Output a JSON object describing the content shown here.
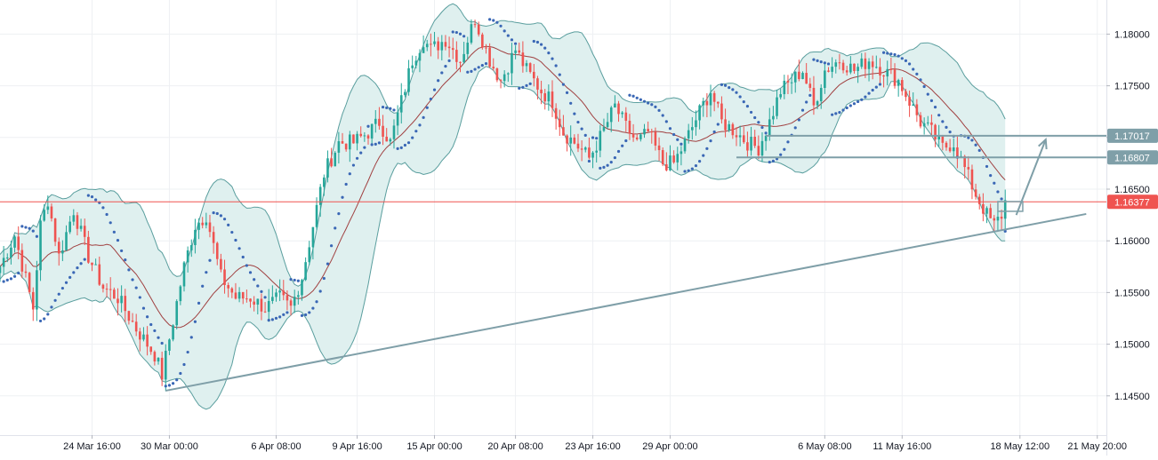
{
  "chart_data": {
    "type": "candlestick",
    "symbol": "",
    "grid": true,
    "price_axis": "right",
    "ylim": [
      1.1412,
      1.1833
    ],
    "y_ticks": [
      {
        "value": 1.18,
        "label": "1.18000"
      },
      {
        "value": 1.175,
        "label": "1.17500"
      },
      {
        "value": 1.17,
        "label": "1.17000"
      },
      {
        "value": 1.165,
        "label": "1.16500"
      },
      {
        "value": 1.16,
        "label": "1.16000"
      },
      {
        "value": 1.155,
        "label": "1.15500"
      },
      {
        "value": 1.15,
        "label": "1.15000"
      },
      {
        "value": 1.145,
        "label": "1.14500"
      }
    ],
    "x_ticks": [
      {
        "index": 25,
        "label": "24 Mar 16:00"
      },
      {
        "index": 46,
        "label": "30 Mar 00:00"
      },
      {
        "index": 75,
        "label": "6 Apr 08:00"
      },
      {
        "index": 97,
        "label": "9 Apr 16:00"
      },
      {
        "index": 118,
        "label": "15 Apr 00:00"
      },
      {
        "index": 140,
        "label": "20 Apr 08:00"
      },
      {
        "index": 161,
        "label": "23 Apr 16:00"
      },
      {
        "index": 182,
        "label": "29 Apr 00:00"
      },
      {
        "index": 224,
        "label": "6 May 08:00"
      },
      {
        "index": 245,
        "label": "11 May 16:00"
      },
      {
        "index": 277,
        "label": "18 May 12:00"
      },
      {
        "index": 298,
        "label": "21 May 20:00"
      }
    ],
    "price_keypoints": [
      [
        0,
        1.1575
      ],
      [
        4,
        1.1605
      ],
      [
        9,
        1.1535
      ],
      [
        11,
        1.1615
      ],
      [
        13,
        1.164
      ],
      [
        16,
        1.1585
      ],
      [
        20,
        1.163
      ],
      [
        24,
        1.1585
      ],
      [
        28,
        1.1555
      ],
      [
        32,
        1.1545
      ],
      [
        37,
        1.1515
      ],
      [
        42,
        1.149
      ],
      [
        44,
        1.147
      ],
      [
        46,
        1.1505
      ],
      [
        50,
        1.1575
      ],
      [
        53,
        1.1615
      ],
      [
        56,
        1.1625
      ],
      [
        60,
        1.1565
      ],
      [
        64,
        1.1545
      ],
      [
        68,
        1.1545
      ],
      [
        72,
        1.1535
      ],
      [
        76,
        1.1545
      ],
      [
        79,
        1.1535
      ],
      [
        82,
        1.1565
      ],
      [
        85,
        1.1615
      ],
      [
        88,
        1.1665
      ],
      [
        92,
        1.1695
      ],
      [
        96,
        1.1695
      ],
      [
        100,
        1.1705
      ],
      [
        103,
        1.1715
      ],
      [
        106,
        1.1695
      ],
      [
        109,
        1.1735
      ],
      [
        112,
        1.1775
      ],
      [
        115,
        1.1795
      ],
      [
        117,
        1.1785
      ],
      [
        121,
        1.1795
      ],
      [
        125,
        1.1775
      ],
      [
        129,
        1.1815
      ],
      [
        133,
        1.1775
      ],
      [
        136,
        1.1755
      ],
      [
        140,
        1.1785
      ],
      [
        143,
        1.1765
      ],
      [
        147,
        1.1745
      ],
      [
        150,
        1.1735
      ],
      [
        153,
        1.1705
      ],
      [
        156,
        1.1695
      ],
      [
        160,
        1.168
      ],
      [
        163,
        1.17
      ],
      [
        167,
        1.173
      ],
      [
        170,
        1.171
      ],
      [
        173,
        1.1695
      ],
      [
        176,
        1.1705
      ],
      [
        180,
        1.1675
      ],
      [
        183,
        1.1675
      ],
      [
        186,
        1.1695
      ],
      [
        190,
        1.1725
      ],
      [
        193,
        1.1745
      ],
      [
        196,
        1.1715
      ],
      [
        200,
        1.1705
      ],
      [
        203,
        1.1695
      ],
      [
        206,
        1.169
      ],
      [
        209,
        1.1715
      ],
      [
        212,
        1.1745
      ],
      [
        215,
        1.1755
      ],
      [
        218,
        1.1765
      ],
      [
        221,
        1.173
      ],
      [
        224,
        1.1765
      ],
      [
        228,
        1.1775
      ],
      [
        232,
        1.1765
      ],
      [
        236,
        1.1775
      ],
      [
        240,
        1.1765
      ],
      [
        244,
        1.1755
      ],
      [
        247,
        1.1735
      ],
      [
        250,
        1.1715
      ],
      [
        253,
        1.1705
      ],
      [
        256,
        1.169
      ],
      [
        259,
        1.1695
      ],
      [
        262,
        1.167
      ],
      [
        265,
        1.1645
      ],
      [
        268,
        1.1625
      ],
      [
        270,
        1.1615
      ],
      [
        272,
        1.1625
      ],
      [
        273,
        1.1638
      ]
    ],
    "indicators": [
      "Bollinger Bands",
      "Parabolic SAR"
    ],
    "current_price": {
      "value": 1.16377,
      "label": "1.16377",
      "color": "#ef5350"
    },
    "horizontal_levels": [
      {
        "value": 1.17017,
        "label": "1.17017",
        "color": "#7f9fa8"
      },
      {
        "value": 1.16807,
        "label": "1.16807",
        "color": "#7f9fa8"
      }
    ],
    "trendline": {
      "from": [
        45,
        1.1455
      ],
      "to": [
        295,
        1.1626
      ]
    },
    "projection_arrow": {
      "from": [
        276,
        1.1625
      ],
      "to": [
        284,
        1.1698
      ]
    },
    "colors": {
      "up": "#26a69a",
      "down": "#ef5350",
      "band_fill": "#dff0ef",
      "band_line": "#5a9e9e",
      "basis": "#a04040",
      "sar": "#3a67b5",
      "grid": "#eef0f3",
      "drawing": "#7f9fa8",
      "axis_text": "#131722"
    }
  }
}
